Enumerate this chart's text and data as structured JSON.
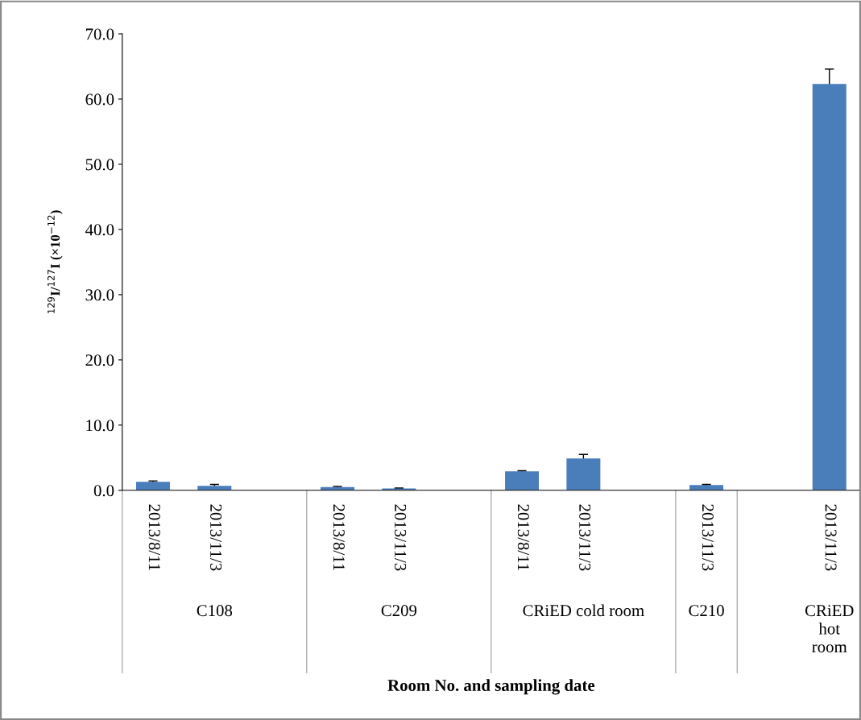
{
  "chart_data": {
    "type": "bar",
    "ylabel": "$^{129}$I/$^{127}$I (×10$^{−12}$)",
    "categories": [
      "2013/8/11",
      "2013/11/3",
      null,
      "2013/8/11",
      "2013/11/3",
      null,
      "2013/8/11",
      "2013/11/3",
      null,
      "2013/11/3",
      null,
      "2013/11/3"
    ],
    "values": [
      1.3,
      0.7,
      null,
      0.5,
      0.3,
      null,
      2.9,
      4.9,
      null,
      0.8,
      null,
      62.3
    ],
    "errors": [
      0.15,
      0.2,
      null,
      0.1,
      0.05,
      null,
      0.1,
      0.6,
      null,
      0.1,
      null,
      2.3
    ],
    "color": "#4a7ebb",
    "annotations": [
      "C108",
      "C209",
      "CRiED cold room",
      "C210",
      "CRiED hot room",
      "Room No. and sampling date"
    ],
    "ylim": [
      0,
      70
    ],
    "yticks": [
      {
        "value": 0,
        "label": "0.0"
      },
      {
        "value": 10,
        "label": "10.0"
      },
      {
        "value": 20,
        "label": "20.0"
      },
      {
        "value": 30,
        "label": "30.0"
      },
      {
        "value": 40,
        "label": "40.0"
      },
      {
        "value": 50,
        "label": "50.0"
      },
      {
        "value": 60,
        "label": "60.0"
      },
      {
        "value": 70,
        "label": "70.0"
      }
    ],
    "grid": false
  }
}
